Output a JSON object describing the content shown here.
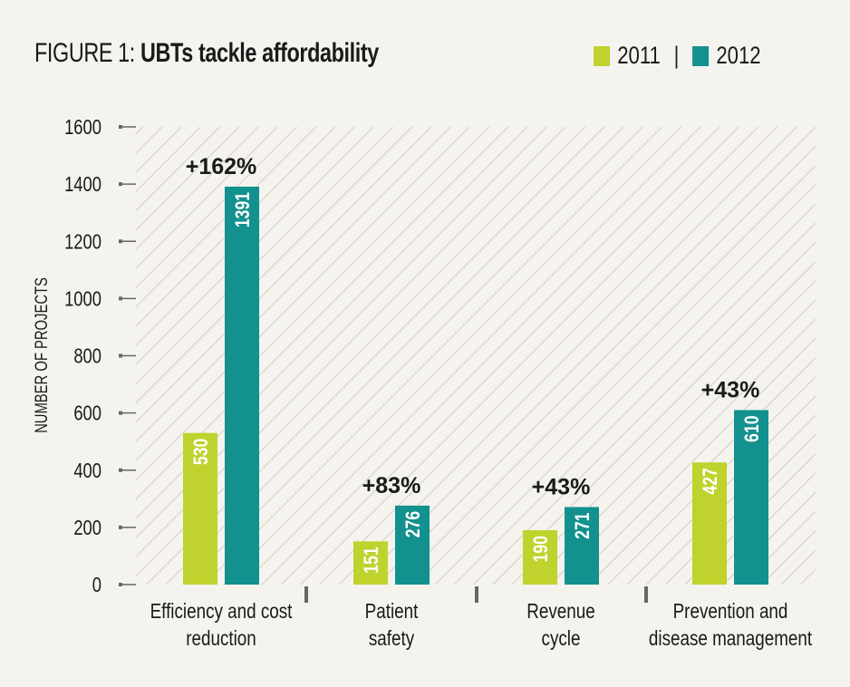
{
  "title": {
    "prefix": "FIGURE 1: ",
    "main": "UBTs tackle affordability"
  },
  "legend": {
    "separator": "|"
  },
  "colors": {
    "2011": "#bfd22d",
    "2012": "#12918f",
    "hatch": "#d6cdbf",
    "background": "#f4f3ee"
  },
  "chart_data": {
    "type": "bar",
    "title": "FIGURE 1: UBTs tackle affordability",
    "xlabel": "",
    "ylabel": "NUMBER OF PROJECTS",
    "ylim": [
      0,
      1600
    ],
    "yticks": [
      0,
      200,
      400,
      600,
      800,
      1000,
      1200,
      1400,
      1600
    ],
    "categories": [
      [
        "Efficiency and cost",
        "reduction"
      ],
      [
        "Patient",
        "safety"
      ],
      [
        "Revenue",
        "cycle"
      ],
      [
        "Prevention and",
        "disease management"
      ]
    ],
    "series": [
      {
        "name": "2011",
        "values": [
          530,
          151,
          190,
          427
        ]
      },
      {
        "name": "2012",
        "values": [
          1391,
          276,
          271,
          610
        ]
      }
    ],
    "annotations": [
      "+162%",
      "+83%",
      "+43%",
      "+43%"
    ],
    "legend_position": "top-right",
    "grid": false
  }
}
